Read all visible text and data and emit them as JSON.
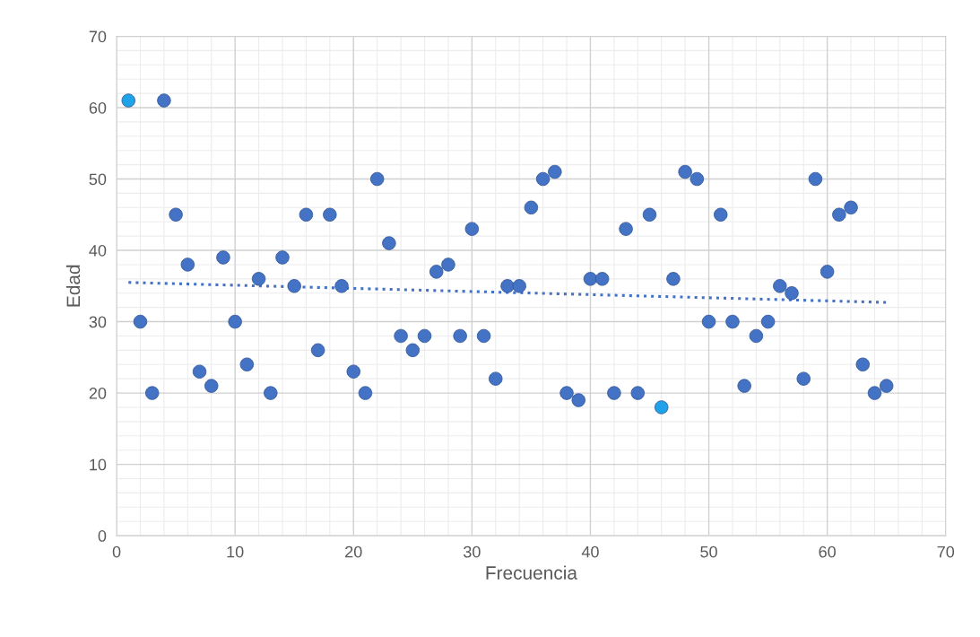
{
  "chart_data": {
    "type": "scatter",
    "xlabel": "Frecuencia",
    "ylabel": "Edad",
    "xlim": [
      0,
      70
    ],
    "ylim": [
      0,
      70
    ],
    "xticks": [
      0,
      10,
      20,
      30,
      40,
      50,
      60,
      70
    ],
    "yticks": [
      0,
      10,
      20,
      30,
      40,
      50,
      60,
      70
    ],
    "grid": true,
    "series": [
      {
        "marker": "circle",
        "x": [
          1,
          2,
          3,
          4,
          5,
          6,
          7,
          8,
          9,
          10,
          11,
          12,
          13,
          14,
          15,
          16,
          17,
          18,
          19,
          20,
          21,
          22,
          23,
          24,
          25,
          26,
          27,
          28,
          29,
          30,
          31,
          32,
          33,
          34,
          35,
          36,
          37,
          38,
          39,
          40,
          41,
          42,
          43,
          44,
          45,
          46,
          47,
          48,
          49,
          50,
          51,
          52,
          53,
          54,
          55,
          56,
          57,
          58,
          59,
          60,
          61,
          62,
          63,
          64,
          65
        ],
        "values": [
          61,
          30,
          20,
          61,
          45,
          38,
          23,
          21,
          39,
          30,
          24,
          36,
          20,
          39,
          35,
          45,
          26,
          45,
          35,
          23,
          20,
          50,
          41,
          28,
          26,
          28,
          37,
          38,
          28,
          43,
          28,
          22,
          35,
          35,
          46,
          50,
          51,
          20,
          19,
          36,
          36,
          20,
          43,
          20,
          45,
          18,
          36,
          51,
          50,
          30,
          45,
          30,
          21,
          28,
          30,
          35,
          34,
          22,
          50,
          37,
          45,
          46,
          24,
          20,
          21
        ],
        "colors": [
          "#1fa3e8",
          "#4472c4",
          "#4472c4",
          "#4472c4",
          "#4472c4",
          "#4472c4",
          "#4472c4",
          "#4472c4",
          "#4472c4",
          "#4472c4",
          "#4472c4",
          "#4472c4",
          "#4472c4",
          "#4472c4",
          "#4472c4",
          "#4472c4",
          "#4472c4",
          "#4472c4",
          "#4472c4",
          "#4472c4",
          "#4472c4",
          "#4472c4",
          "#4472c4",
          "#4472c4",
          "#4472c4",
          "#4472c4",
          "#4472c4",
          "#4472c4",
          "#4472c4",
          "#4472c4",
          "#4472c4",
          "#4472c4",
          "#4472c4",
          "#4472c4",
          "#4472c4",
          "#4472c4",
          "#4472c4",
          "#4472c4",
          "#4472c4",
          "#4472c4",
          "#4472c4",
          "#4472c4",
          "#4472c4",
          "#4472c4",
          "#4472c4",
          "#1fa3e8",
          "#4472c4",
          "#4472c4",
          "#4472c4",
          "#4472c4",
          "#4472c4",
          "#4472c4",
          "#4472c4",
          "#4472c4",
          "#4472c4",
          "#4472c4",
          "#4472c4",
          "#4472c4",
          "#4472c4",
          "#4472c4",
          "#4472c4",
          "#4472c4",
          "#4472c4",
          "#4472c4",
          "#4472c4"
        ]
      },
      {
        "type": "line",
        "color": "#4472c4",
        "line_style": "dotted",
        "x": [
          1,
          65
        ],
        "values": [
          35.5,
          32.7
        ]
      }
    ]
  }
}
